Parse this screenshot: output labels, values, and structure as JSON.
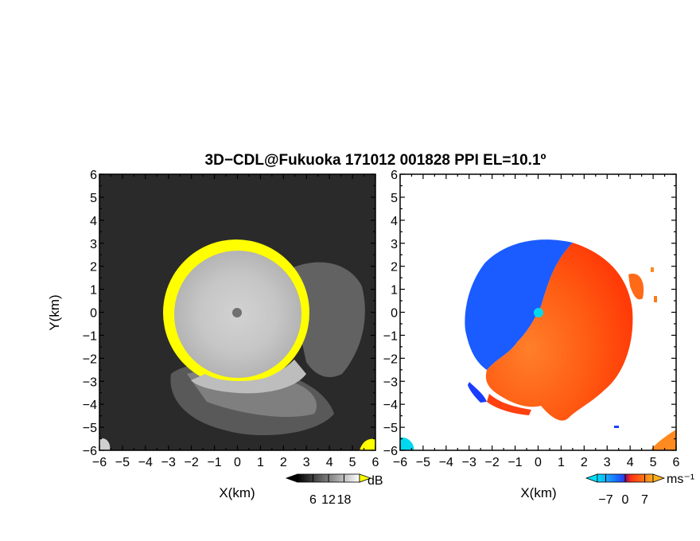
{
  "title": "3D−CDL@Fukuoka 171012 001828 PPI EL=10.1º",
  "chart_data": [
    {
      "type": "heatmap",
      "panel": "left",
      "quantity": "SNR",
      "xlabel": "X(km)",
      "ylabel": "Y(km)",
      "xlim": [
        -6,
        6
      ],
      "ylim": [
        -6,
        6
      ],
      "x_ticks": [
        "−6",
        "−5",
        "−4",
        "−3",
        "−2",
        "−1",
        "0",
        "1",
        "2",
        "3",
        "4",
        "5",
        "6"
      ],
      "y_ticks": [
        "6",
        "5",
        "4",
        "3",
        "2",
        "1",
        "0",
        "−1",
        "−2",
        "−3",
        "−4",
        "−5",
        "−6"
      ],
      "colorbar": {
        "unit": "dB",
        "range": [
          0,
          24
        ],
        "tick_values": [
          6,
          12,
          18
        ],
        "tick_labels": [
          "6",
          "12",
          "18"
        ],
        "colors": {
          "low": "#000000",
          "high": "#ffffff",
          "saturated": "#ffff00"
        }
      },
      "background_color": "#2a2a2a",
      "echo_center_km": [
        0,
        0
      ],
      "echo_radius_km": 3.1
    },
    {
      "type": "heatmap",
      "panel": "right",
      "quantity": "Doppler velocity",
      "xlabel": "X(km)",
      "ylabel": "",
      "xlim": [
        -6,
        6
      ],
      "ylim": [
        -6,
        6
      ],
      "x_ticks": [
        "−6",
        "−5",
        "−4",
        "−3",
        "−2",
        "−1",
        "0",
        "1",
        "2",
        "3",
        "4",
        "5",
        "6"
      ],
      "y_ticks": [
        "6",
        "5",
        "4",
        "3",
        "2",
        "1",
        "0",
        "−1",
        "−2",
        "−3",
        "−4",
        "−5",
        "−6"
      ],
      "colorbar": {
        "unit": "ms⁻¹",
        "range": [
          -10,
          10
        ],
        "tick_values": [
          -7,
          0,
          7
        ],
        "tick_labels": [
          "−7",
          "0",
          "7"
        ],
        "colors": {
          "negative": "#1a5cff",
          "near_zero": "#00d8f0",
          "positive": "#ff4a10",
          "high": "#ffa020"
        }
      },
      "background_color": "#ffffff",
      "echo_center_km": [
        0,
        0
      ],
      "echo_radius_km": 3.1
    }
  ]
}
